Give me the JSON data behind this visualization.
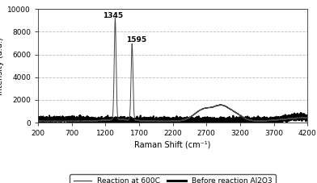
{
  "title": "",
  "xlabel": "Raman Shift (cm⁻¹)",
  "ylabel": "Intensity (a.u.)",
  "xlim": [
    200,
    4200
  ],
  "ylim": [
    0,
    10000
  ],
  "yticks": [
    0,
    2000,
    4000,
    6000,
    8000,
    10000
  ],
  "xticks": [
    200,
    700,
    1200,
    1700,
    2200,
    2700,
    3200,
    3700,
    4200
  ],
  "peak1_x": 1345,
  "peak1_y": 9050,
  "peak2_x": 1595,
  "peak2_y": 6900,
  "annotation1": "1345",
  "annotation2": "1595",
  "legend_entries": [
    "Reaction at 600C",
    "Before reaction Al2O3"
  ],
  "line1_color": "#444444",
  "line2_color": "#000000",
  "background": "#ffffff",
  "grid_color": "#bbbbbb"
}
